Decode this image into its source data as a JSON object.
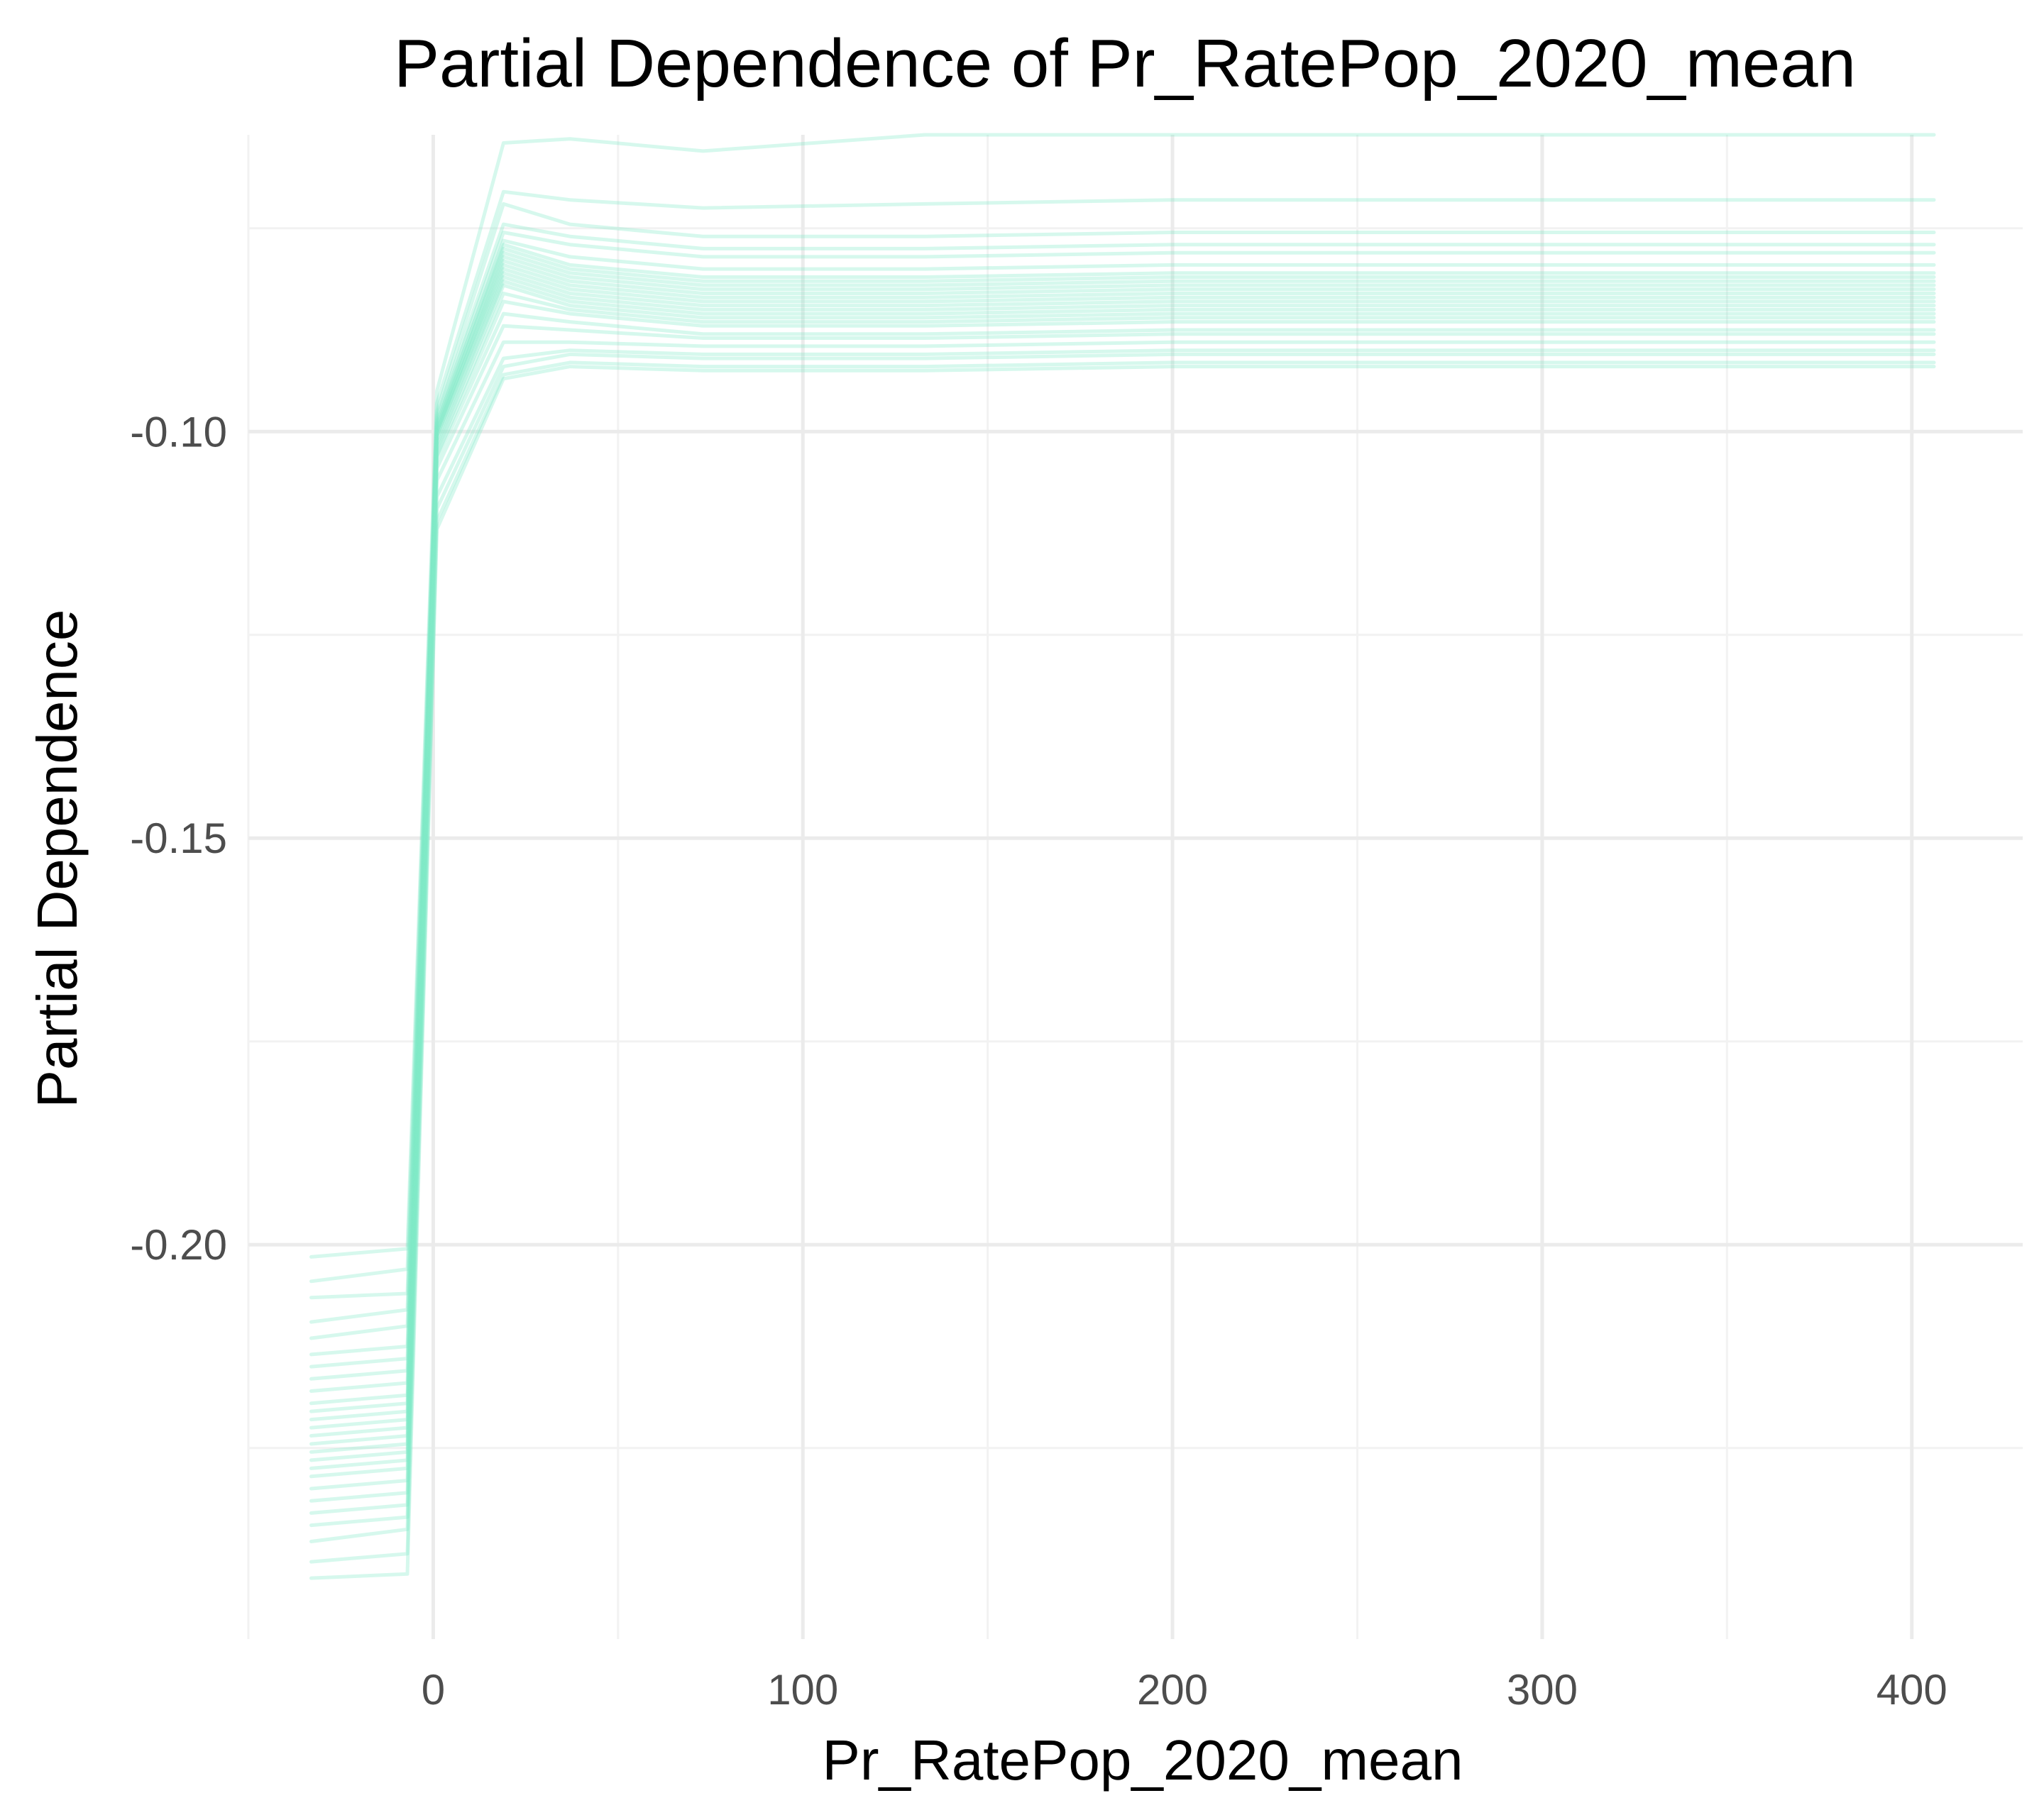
{
  "chart_data": {
    "type": "line",
    "title": "Partial Dependence of Pr_RatePop_2020_mean",
    "xlabel": "Pr_RatePop_2020_mean",
    "ylabel": "Partial Dependence",
    "xlim": [
      -50,
      430
    ],
    "ylim": [
      -0.2485,
      -0.0635
    ],
    "x_ticks": [
      0,
      100,
      200,
      300,
      400
    ],
    "x_tick_labels": [
      "0",
      "100",
      "200",
      "300",
      "400"
    ],
    "y_ticks": [
      -0.1,
      -0.15,
      -0.2
    ],
    "y_tick_labels": [
      "-0.10",
      "-0.15",
      "-0.20"
    ],
    "grid": true,
    "legend": "none",
    "line_color": "#7ee8c6",
    "x": [
      -33,
      -7,
      1,
      19,
      37,
      73,
      133,
      200,
      300,
      406
    ],
    "series": [
      {
        "values": [
          -0.2015,
          -0.2005,
          -0.095,
          -0.0645,
          -0.064,
          -0.0655,
          -0.0635,
          -0.0635,
          -0.0635,
          -0.0635
        ]
      },
      {
        "values": [
          -0.2045,
          -0.203,
          -0.0965,
          -0.0705,
          -0.0715,
          -0.0725,
          -0.072,
          -0.0715,
          -0.0715,
          -0.0715
        ]
      },
      {
        "values": [
          -0.2065,
          -0.206,
          -0.0975,
          -0.072,
          -0.0745,
          -0.076,
          -0.076,
          -0.0755,
          -0.0755,
          -0.0755
        ]
      },
      {
        "values": [
          -0.2095,
          -0.208,
          -0.098,
          -0.0745,
          -0.076,
          -0.0775,
          -0.0775,
          -0.077,
          -0.077,
          -0.077
        ]
      },
      {
        "values": [
          -0.2115,
          -0.21,
          -0.0985,
          -0.0755,
          -0.077,
          -0.0785,
          -0.0785,
          -0.078,
          -0.078,
          -0.078
        ]
      },
      {
        "values": [
          -0.2135,
          -0.2125,
          -0.099,
          -0.0765,
          -0.0785,
          -0.08,
          -0.08,
          -0.0795,
          -0.0795,
          -0.0795
        ]
      },
      {
        "values": [
          -0.215,
          -0.214,
          -0.099,
          -0.077,
          -0.0795,
          -0.081,
          -0.081,
          -0.0805,
          -0.0805,
          -0.0805
        ]
      },
      {
        "values": [
          -0.2165,
          -0.2155,
          -0.0995,
          -0.0775,
          -0.08,
          -0.0815,
          -0.0815,
          -0.081,
          -0.081,
          -0.081
        ]
      },
      {
        "values": [
          -0.218,
          -0.217,
          -0.0995,
          -0.078,
          -0.0805,
          -0.082,
          -0.082,
          -0.0815,
          -0.0815,
          -0.0815
        ]
      },
      {
        "values": [
          -0.2195,
          -0.2185,
          -0.1,
          -0.0785,
          -0.081,
          -0.0825,
          -0.0825,
          -0.082,
          -0.082,
          -0.082
        ]
      },
      {
        "values": [
          -0.2205,
          -0.2195,
          -0.1,
          -0.079,
          -0.0815,
          -0.083,
          -0.083,
          -0.0825,
          -0.0825,
          -0.0825
        ]
      },
      {
        "values": [
          -0.2215,
          -0.2205,
          -0.1,
          -0.0795,
          -0.082,
          -0.0835,
          -0.0835,
          -0.083,
          -0.083,
          -0.083
        ]
      },
      {
        "values": [
          -0.2225,
          -0.2215,
          -0.1005,
          -0.08,
          -0.0825,
          -0.084,
          -0.084,
          -0.0835,
          -0.0835,
          -0.0835
        ]
      },
      {
        "values": [
          -0.2235,
          -0.2225,
          -0.1005,
          -0.0805,
          -0.083,
          -0.0845,
          -0.0845,
          -0.084,
          -0.084,
          -0.084
        ]
      },
      {
        "values": [
          -0.2245,
          -0.2235,
          -0.101,
          -0.081,
          -0.0835,
          -0.085,
          -0.085,
          -0.0845,
          -0.0845,
          -0.0845
        ]
      },
      {
        "values": [
          -0.2255,
          -0.2245,
          -0.1015,
          -0.0815,
          -0.084,
          -0.0855,
          -0.0855,
          -0.085,
          -0.085,
          -0.085
        ]
      },
      {
        "values": [
          -0.2265,
          -0.2255,
          -0.102,
          -0.082,
          -0.0845,
          -0.086,
          -0.086,
          -0.0855,
          -0.0855,
          -0.0855
        ]
      },
      {
        "values": [
          -0.2275,
          -0.2265,
          -0.1025,
          -0.083,
          -0.085,
          -0.0865,
          -0.0865,
          -0.086,
          -0.086,
          -0.086
        ]
      },
      {
        "values": [
          -0.2285,
          -0.2275,
          -0.103,
          -0.084,
          -0.0855,
          -0.087,
          -0.087,
          -0.0865,
          -0.0865,
          -0.0865
        ]
      },
      {
        "values": [
          -0.23,
          -0.229,
          -0.1035,
          -0.0855,
          -0.0865,
          -0.088,
          -0.088,
          -0.0875,
          -0.0875,
          -0.0875
        ]
      },
      {
        "values": [
          -0.2315,
          -0.2305,
          -0.1045,
          -0.087,
          -0.0875,
          -0.0885,
          -0.0885,
          -0.088,
          -0.088,
          -0.088
        ]
      },
      {
        "values": [
          -0.233,
          -0.232,
          -0.106,
          -0.089,
          -0.089,
          -0.0895,
          -0.0895,
          -0.089,
          -0.089,
          -0.089
        ]
      },
      {
        "values": [
          -0.2345,
          -0.2335,
          -0.108,
          -0.091,
          -0.09,
          -0.0905,
          -0.0905,
          -0.09,
          -0.09,
          -0.09
        ]
      },
      {
        "values": [
          -0.2365,
          -0.235,
          -0.1095,
          -0.092,
          -0.0905,
          -0.091,
          -0.091,
          -0.0905,
          -0.0905,
          -0.0905
        ]
      },
      {
        "values": [
          -0.239,
          -0.238,
          -0.111,
          -0.093,
          -0.0915,
          -0.092,
          -0.092,
          -0.0915,
          -0.0915,
          -0.0915
        ]
      },
      {
        "values": [
          -0.241,
          -0.2405,
          -0.112,
          -0.0935,
          -0.092,
          -0.0925,
          -0.0925,
          -0.092,
          -0.092,
          -0.092
        ]
      }
    ]
  }
}
